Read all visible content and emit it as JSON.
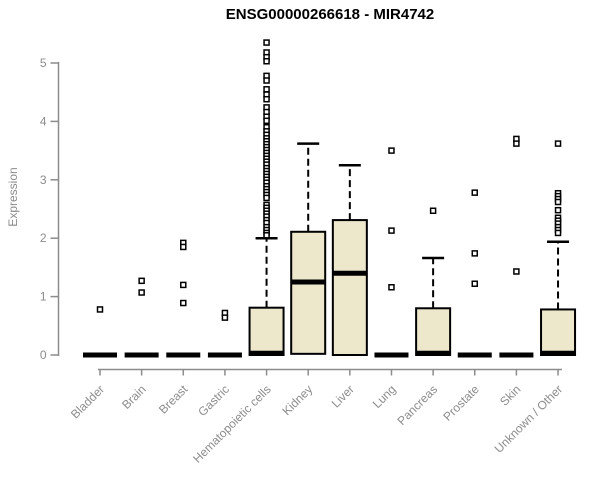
{
  "title": "ENSG00000266618 - MIR4742",
  "colors": {
    "box_fill": "#EDE7CC",
    "box_stroke": "#000000",
    "median": "#000000",
    "whisker": "#000000",
    "outlier_fill": "#ffffff",
    "outlier_stroke": "#000000",
    "axis": "#8C8C8C",
    "tick_label": "#8C8C8C",
    "title": "#000000",
    "background": "#ffffff"
  },
  "chart_data": {
    "type": "boxplot",
    "title": "ENSG00000266618 - MIR4742",
    "xlabel": "",
    "ylabel": "Expression",
    "ylim": [
      0,
      5.4
    ],
    "yticks": [
      0,
      1,
      2,
      3,
      4,
      5
    ],
    "grid": false,
    "legend": false,
    "categories": [
      "Bladder",
      "Brain",
      "Breast",
      "Gastric",
      "Hematopoietic cells",
      "Kidney",
      "Liver",
      "Lung",
      "Pancreas",
      "Prostate",
      "Skin",
      "Unknown / Other"
    ],
    "series": [
      {
        "name": "Bladder",
        "q1": 0,
        "median": 0,
        "q3": 0,
        "whisker_low": 0,
        "whisker_high": 0,
        "outliers": [
          0.78
        ]
      },
      {
        "name": "Brain",
        "q1": 0,
        "median": 0,
        "q3": 0,
        "whisker_low": 0,
        "whisker_high": 0,
        "outliers": [
          1.27,
          1.07
        ]
      },
      {
        "name": "Breast",
        "q1": 0,
        "median": 0,
        "q3": 0,
        "whisker_low": 0,
        "whisker_high": 0,
        "outliers": [
          1.92,
          1.85,
          1.2,
          0.89
        ]
      },
      {
        "name": "Gastric",
        "q1": 0,
        "median": 0,
        "q3": 0,
        "whisker_low": 0,
        "whisker_high": 0,
        "outliers": [
          0.72,
          0.64
        ]
      },
      {
        "name": "Hematopoietic cells",
        "q1": 0,
        "median": 0.03,
        "q3": 0.81,
        "whisker_low": 0,
        "whisker_high": 2.0,
        "outliers": [
          5.35,
          5.18,
          5.1,
          5.03,
          4.78,
          4.7,
          4.55,
          4.46,
          4.38,
          4.24,
          4.16,
          4.08,
          4.01,
          3.9,
          3.83,
          3.77,
          3.71,
          3.66,
          3.61,
          3.56,
          3.51,
          3.46,
          3.41,
          3.36,
          3.31,
          3.26,
          3.2,
          3.15,
          3.1,
          3.05,
          3.0,
          2.95,
          2.89,
          2.84,
          2.79,
          2.74,
          2.69,
          2.57,
          2.52,
          2.47,
          2.42,
          2.37,
          2.31,
          2.26,
          2.19,
          2.14,
          2.09,
          2.05
        ]
      },
      {
        "name": "Kidney",
        "q1": 0.02,
        "median": 1.25,
        "q3": 2.11,
        "whisker_low": 0.02,
        "whisker_high": 3.62,
        "outliers": []
      },
      {
        "name": "Liver",
        "q1": 0,
        "median": 1.4,
        "q3": 2.31,
        "whisker_low": 0,
        "whisker_high": 3.25,
        "outliers": []
      },
      {
        "name": "Lung",
        "q1": 0,
        "median": 0,
        "q3": 0,
        "whisker_low": 0,
        "whisker_high": 0,
        "outliers": [
          3.5,
          2.13,
          1.16
        ]
      },
      {
        "name": "Pancreas",
        "q1": 0,
        "median": 0.03,
        "q3": 0.8,
        "whisker_low": 0,
        "whisker_high": 1.66,
        "outliers": [
          2.47
        ]
      },
      {
        "name": "Prostate",
        "q1": 0,
        "median": 0,
        "q3": 0,
        "whisker_low": 0,
        "whisker_high": 0,
        "outliers": [
          2.78,
          1.74,
          1.22
        ]
      },
      {
        "name": "Skin",
        "q1": 0,
        "median": 0,
        "q3": 0,
        "whisker_low": 0,
        "whisker_high": 0,
        "outliers": [
          3.7,
          3.62,
          1.43
        ]
      },
      {
        "name": "Unknown / Other",
        "q1": 0,
        "median": 0.03,
        "q3": 0.78,
        "whisker_low": 0,
        "whisker_high": 1.94,
        "outliers": [
          3.62,
          2.77,
          2.72,
          2.67,
          2.62,
          2.48,
          2.35,
          2.3,
          2.25,
          2.19,
          2.14,
          2.09
        ]
      }
    ]
  }
}
